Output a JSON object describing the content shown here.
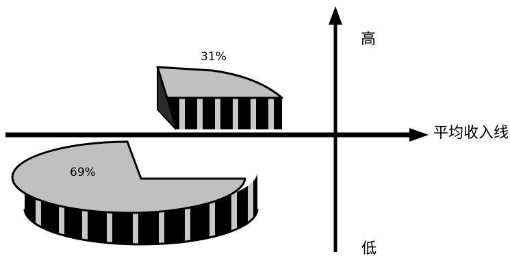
{
  "chart_data": {
    "type": "pie",
    "title": "",
    "categories": [
      "31%",
      "69%"
    ],
    "values": [
      31,
      69
    ],
    "labels": [
      "31%",
      "69%"
    ],
    "axis_labels": {
      "top": "高",
      "bottom": "低",
      "right": "平均收入线"
    },
    "colors": {
      "top_face": "#c0c0c0",
      "side_dark": "#000000",
      "side_stripe": "#c8c8c8",
      "axis": "#000000",
      "background": "#ffffff"
    }
  }
}
